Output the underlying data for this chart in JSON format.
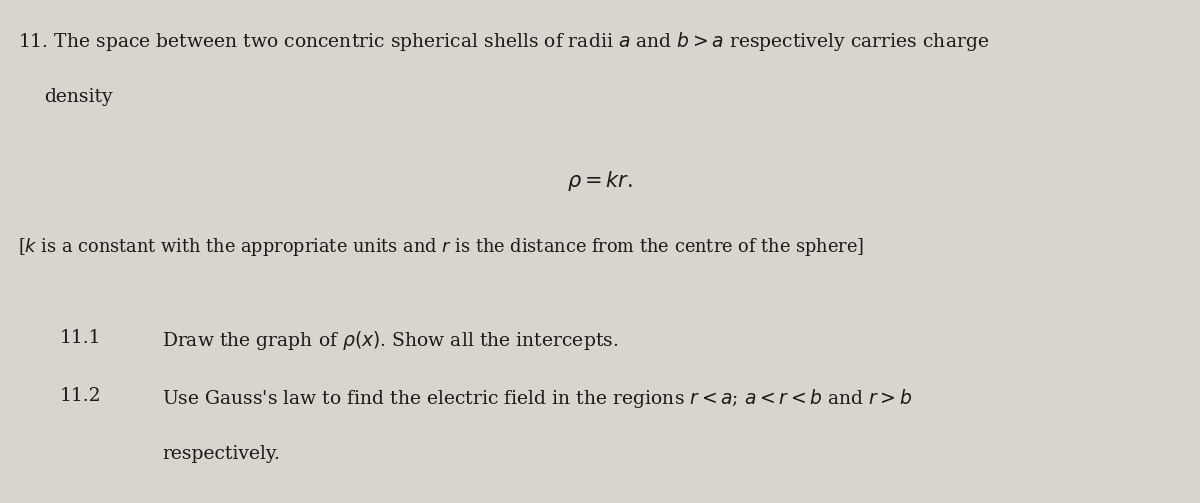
{
  "background_color": "#d9d5cc",
  "text_color": "#1a1a1a",
  "figsize": [
    12.0,
    5.03
  ],
  "dpi": 100,
  "bracket_line": "[k is a constant with the appropriate units and r is the distance from the centre of the sphere]"
}
